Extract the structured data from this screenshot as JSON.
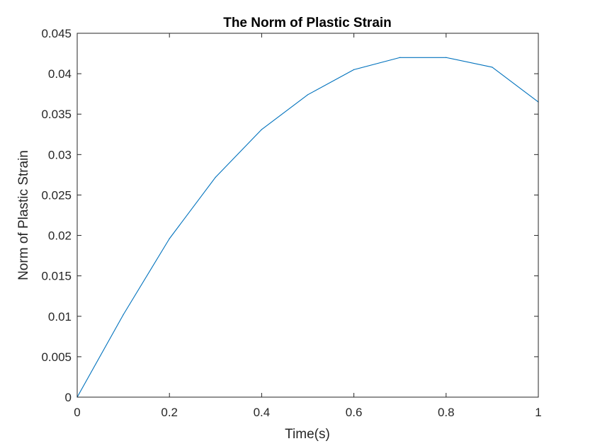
{
  "chart_data": {
    "type": "line",
    "title": "The Norm of Plastic Strain",
    "xlabel": "Time(s)",
    "ylabel": "Norm of Plastic Strain",
    "xlim": [
      0,
      1
    ],
    "ylim": [
      0,
      0.045
    ],
    "x_ticks": [
      "0",
      "0.2",
      "0.4",
      "0.6",
      "0.8",
      "1"
    ],
    "y_ticks": [
      "0",
      "0.005",
      "0.01",
      "0.015",
      "0.02",
      "0.025",
      "0.03",
      "0.035",
      "0.04",
      "0.045"
    ],
    "grid": false,
    "series": [
      {
        "color": "#0072bd",
        "x": [
          0,
          0.1,
          0.2,
          0.3,
          0.4,
          0.5,
          0.6,
          0.7,
          0.8,
          0.9,
          1.0
        ],
        "y": [
          0,
          0.0102,
          0.0196,
          0.0272,
          0.0331,
          0.0374,
          0.0405,
          0.042,
          0.042,
          0.0408,
          0.0365
        ]
      }
    ]
  }
}
